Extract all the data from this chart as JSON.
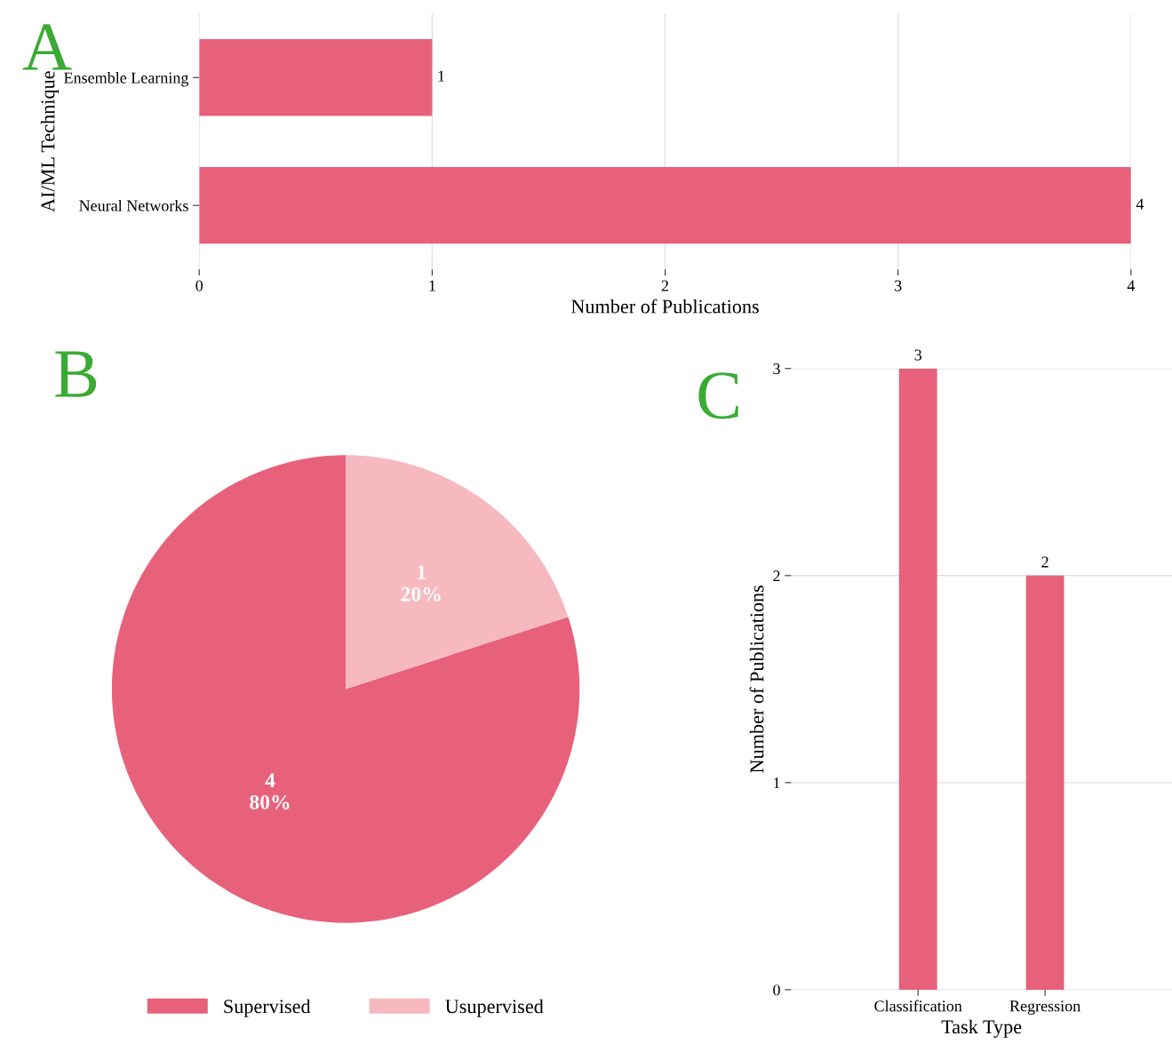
{
  "chart_data": [
    {
      "type": "bar",
      "title": "A",
      "orientation": "horizontal",
      "categories": [
        "Ensemble Learning",
        "Neural Networks"
      ],
      "values": [
        1,
        4
      ],
      "color": "#e8617a",
      "xlim": [
        0,
        4
      ],
      "xticks": [
        0,
        1,
        2,
        3,
        4
      ],
      "xlabel": "Number of Publications",
      "ylabel": "AI/ML Technique",
      "grid": "x",
      "data_labels": true
    },
    {
      "type": "pie",
      "title": "B",
      "categories": [
        "Supervised",
        "Usupervised"
      ],
      "values": [
        4,
        1
      ],
      "colors": [
        "#e8617a",
        "#f7b9c0"
      ],
      "value_labels": [
        "4\n80%",
        "1\n20%"
      ],
      "legend": "bottom"
    },
    {
      "type": "bar",
      "title": "C",
      "categories": [
        "Classification",
        "Regression"
      ],
      "values": [
        3,
        2
      ],
      "color": "#e8617a",
      "ylim": [
        0,
        3
      ],
      "yticks": [
        0,
        1,
        2,
        3
      ],
      "xlabel": "Task Type",
      "ylabel": "Number of Publications",
      "grid": "y",
      "data_labels": true
    }
  ]
}
